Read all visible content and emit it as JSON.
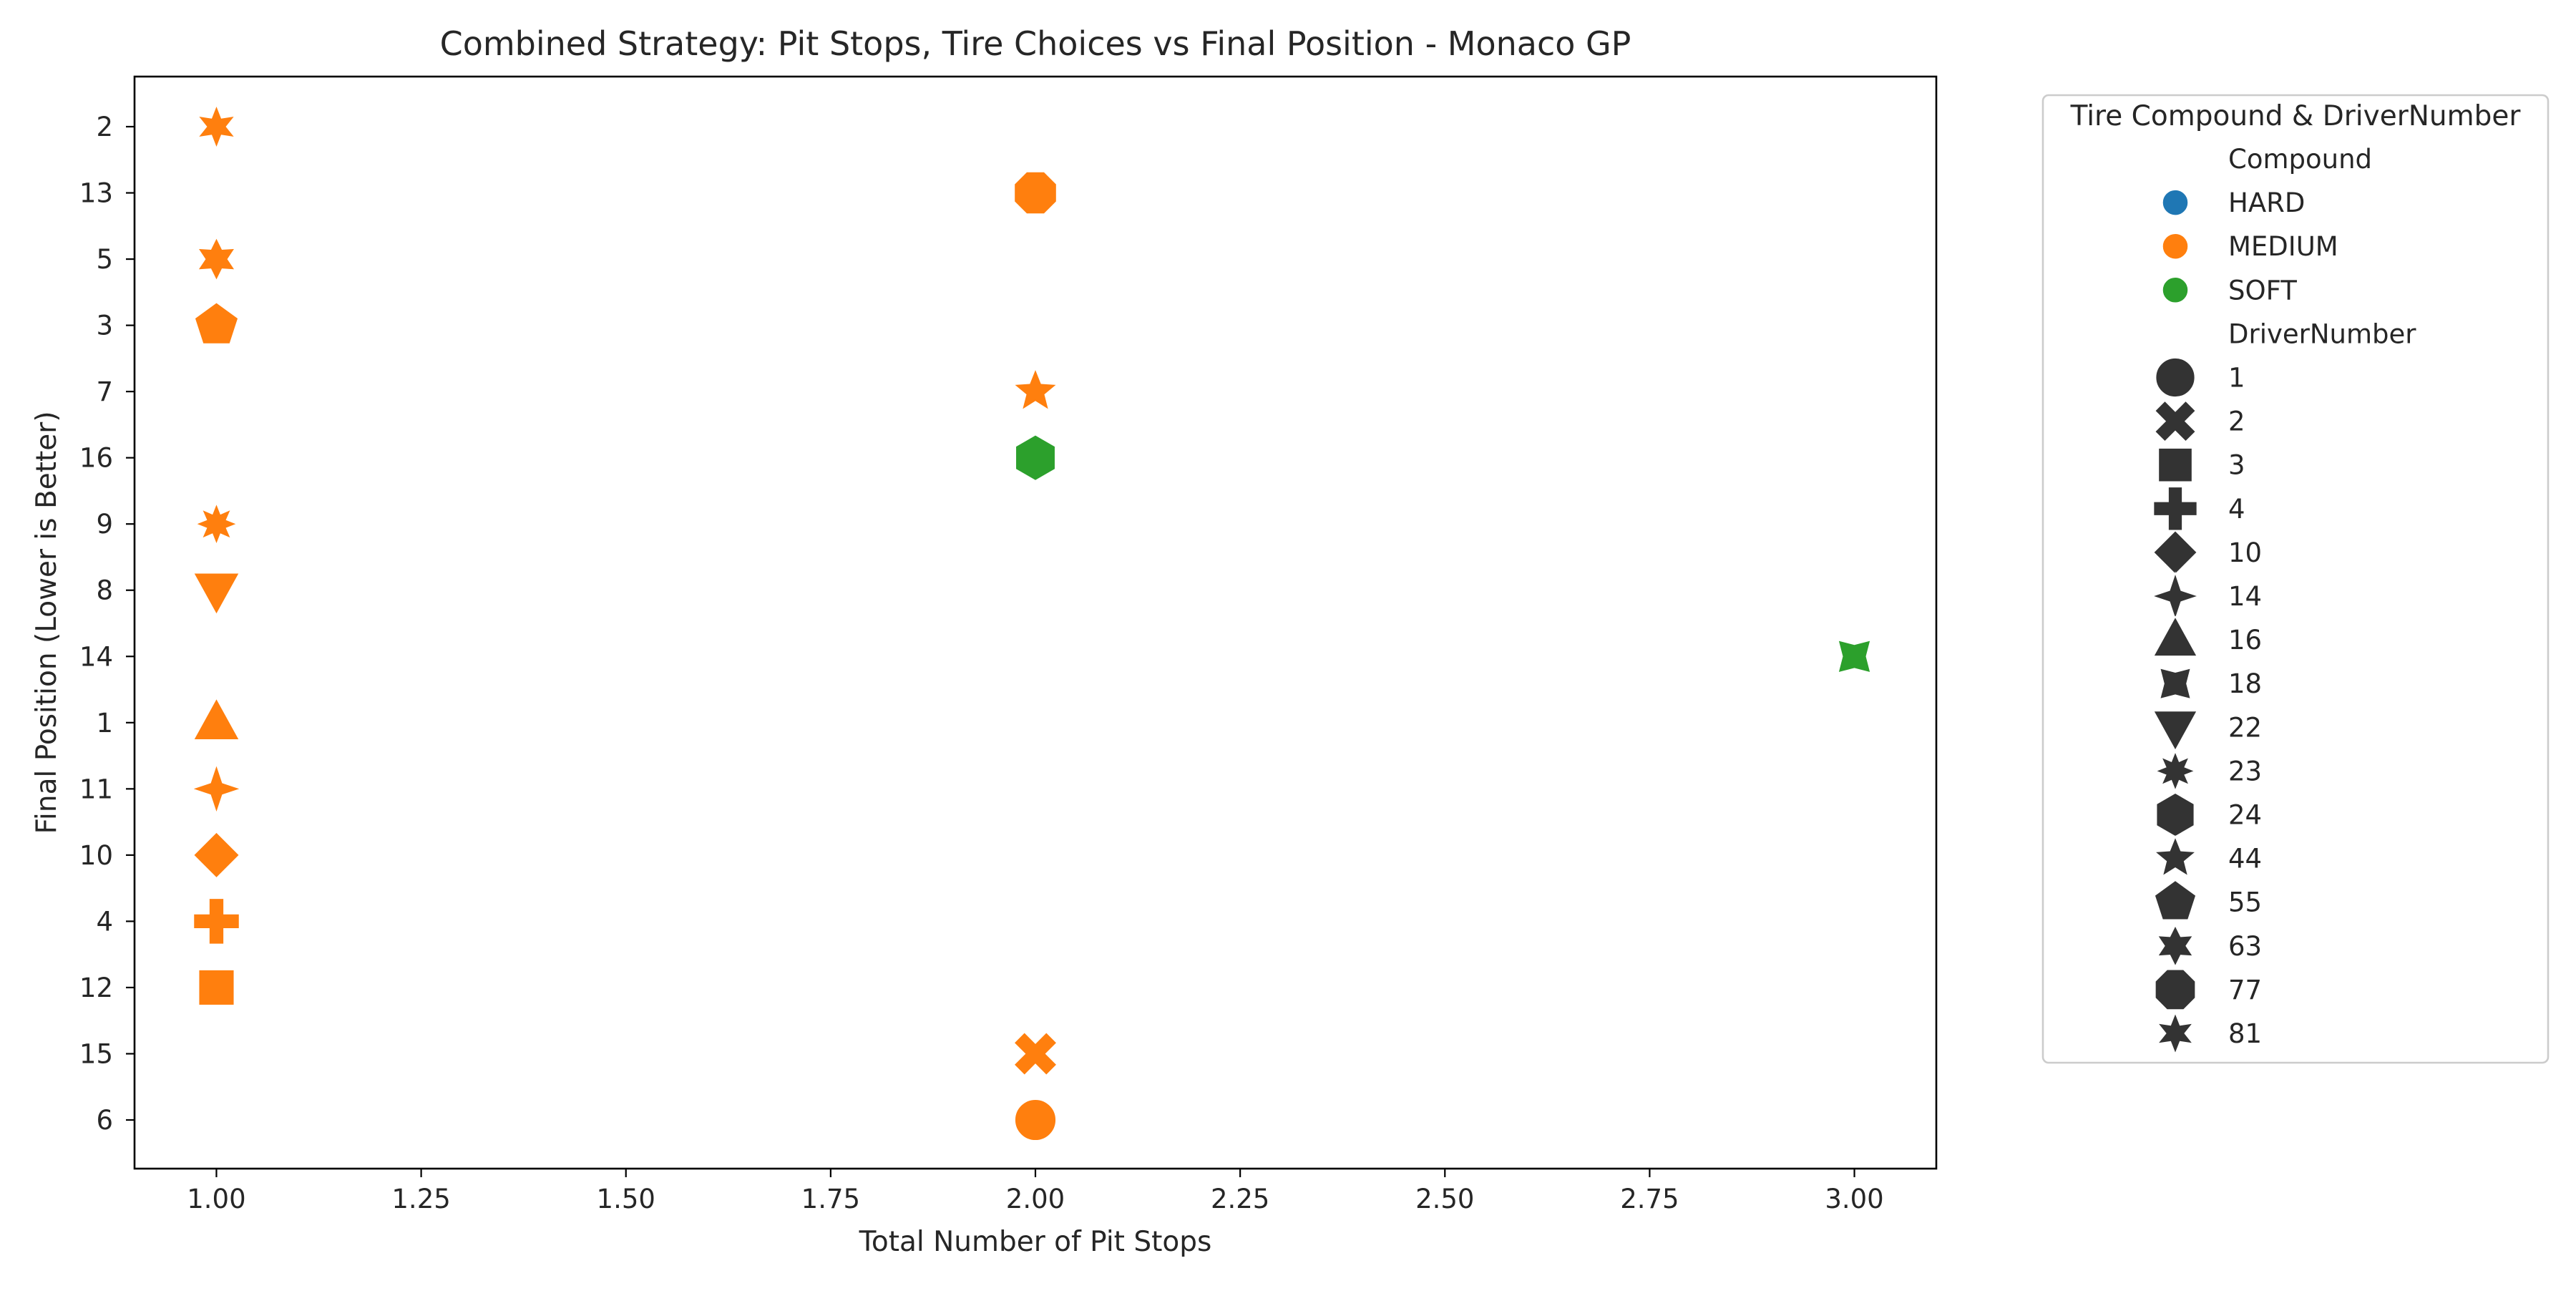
{
  "chart_data": {
    "type": "scatter",
    "title": "Combined Strategy: Pit Stops, Tire Choices vs Final Position - Monaco GP",
    "xlabel": "Total Number of Pit Stops",
    "ylabel": "Final Position (Lower is Better)",
    "xlim": [
      0.9,
      3.1
    ],
    "x_ticks": [
      "1.00",
      "1.25",
      "1.50",
      "1.75",
      "2.00",
      "2.25",
      "2.50",
      "2.75",
      "3.00"
    ],
    "y_categories": [
      "2",
      "13",
      "5",
      "3",
      "7",
      "16",
      "9",
      "8",
      "14",
      "1",
      "11",
      "10",
      "4",
      "12",
      "15",
      "6"
    ],
    "grid": false,
    "legend": {
      "title": "Tire Compound & DriverNumber",
      "placement": "outside right",
      "compound_heading": "Compound",
      "compounds": [
        {
          "name": "HARD",
          "color": "#1f77b4"
        },
        {
          "name": "MEDIUM",
          "color": "#ff7f0e"
        },
        {
          "name": "SOFT",
          "color": "#2ca02c"
        }
      ],
      "driver_heading": "DriverNumber",
      "drivers": [
        {
          "number": "1",
          "marker": "circle"
        },
        {
          "number": "2",
          "marker": "x"
        },
        {
          "number": "3",
          "marker": "square"
        },
        {
          "number": "4",
          "marker": "plus"
        },
        {
          "number": "10",
          "marker": "diamond"
        },
        {
          "number": "14",
          "marker": "star4"
        },
        {
          "number": "16",
          "marker": "triangle-up"
        },
        {
          "number": "18",
          "marker": "concave-square"
        },
        {
          "number": "22",
          "marker": "triangle-down"
        },
        {
          "number": "23",
          "marker": "star8"
        },
        {
          "number": "24",
          "marker": "hexagon"
        },
        {
          "number": "44",
          "marker": "star5"
        },
        {
          "number": "55",
          "marker": "pentagon"
        },
        {
          "number": "63",
          "marker": "star6"
        },
        {
          "number": "77",
          "marker": "octagon"
        },
        {
          "number": "81",
          "marker": "star6b"
        }
      ]
    },
    "points": [
      {
        "x": 1,
        "y": "2",
        "compound": "MEDIUM",
        "driver": "81"
      },
      {
        "x": 1,
        "y": "5",
        "compound": "MEDIUM",
        "driver": "63"
      },
      {
        "x": 1,
        "y": "3",
        "compound": "MEDIUM",
        "driver": "55"
      },
      {
        "x": 1,
        "y": "9",
        "compound": "MEDIUM",
        "driver": "23"
      },
      {
        "x": 1,
        "y": "8",
        "compound": "MEDIUM",
        "driver": "22"
      },
      {
        "x": 1,
        "y": "1",
        "compound": "MEDIUM",
        "driver": "16"
      },
      {
        "x": 1,
        "y": "11",
        "compound": "MEDIUM",
        "driver": "14"
      },
      {
        "x": 1,
        "y": "10",
        "compound": "MEDIUM",
        "driver": "10"
      },
      {
        "x": 1,
        "y": "4",
        "compound": "MEDIUM",
        "driver": "4"
      },
      {
        "x": 1,
        "y": "12",
        "compound": "MEDIUM",
        "driver": "3"
      },
      {
        "x": 2,
        "y": "13",
        "compound": "MEDIUM",
        "driver": "77"
      },
      {
        "x": 2,
        "y": "7",
        "compound": "MEDIUM",
        "driver": "44"
      },
      {
        "x": 2,
        "y": "16",
        "compound": "SOFT",
        "driver": "24"
      },
      {
        "x": 2,
        "y": "15",
        "compound": "MEDIUM",
        "driver": "2"
      },
      {
        "x": 2,
        "y": "6",
        "compound": "MEDIUM",
        "driver": "1"
      },
      {
        "x": 3,
        "y": "14",
        "compound": "SOFT",
        "driver": "18"
      }
    ]
  }
}
